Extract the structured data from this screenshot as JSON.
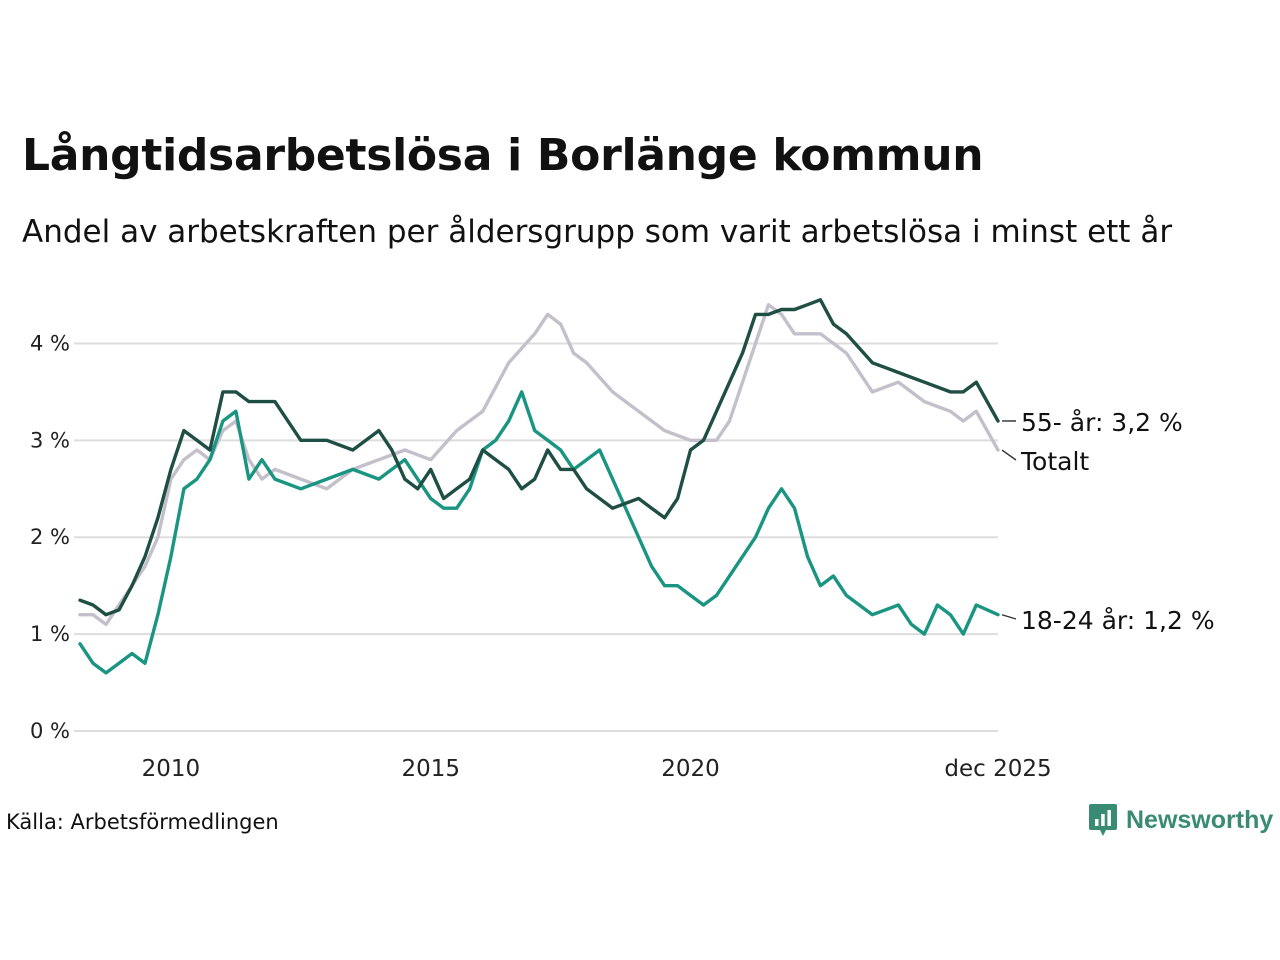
{
  "title": "Långtidsarbetslösa i Borlänge kommun",
  "subtitle": "Andel av arbetskraften per åldersgrupp som varit arbetslösa i minst ett år",
  "source": "Källa: Arbetsförmedlingen",
  "brand": "Newsworthy",
  "colors": {
    "age55": "#1f4e44",
    "total": "#c3c0cb",
    "age18_24": "#1a9582",
    "grid": "#dddddd",
    "brand": "#3a8b74"
  },
  "chart_data": {
    "type": "line",
    "title": "Långtidsarbetslösa i Borlänge kommun",
    "xlabel": "",
    "ylabel": "",
    "ylim": [
      0,
      4.5
    ],
    "xlim": [
      2008.25,
      2025.917
    ],
    "yticks": [
      {
        "value": 0,
        "label": "0 %"
      },
      {
        "value": 1,
        "label": "1 %"
      },
      {
        "value": 2,
        "label": "2 %"
      },
      {
        "value": 3,
        "label": "3 %"
      },
      {
        "value": 4,
        "label": "4 %"
      }
    ],
    "xticks": [
      {
        "value": 2010,
        "label": "2010"
      },
      {
        "value": 2015,
        "label": "2015"
      },
      {
        "value": 2020,
        "label": "2020"
      },
      {
        "value": 2025.917,
        "label": "dec 2025"
      }
    ],
    "series": [
      {
        "name": "Totalt",
        "key": "total",
        "label": "Totalt",
        "x": [
          2008.25,
          2008.5,
          2008.75,
          2009.0,
          2009.25,
          2009.5,
          2009.75,
          2010.0,
          2010.25,
          2010.5,
          2010.75,
          2011.0,
          2011.25,
          2011.5,
          2011.75,
          2012.0,
          2012.5,
          2013.0,
          2013.5,
          2014.0,
          2014.5,
          2015.0,
          2015.5,
          2016.0,
          2016.5,
          2017.0,
          2017.25,
          2017.5,
          2017.75,
          2018.0,
          2018.5,
          2019.0,
          2019.5,
          2020.0,
          2020.5,
          2020.75,
          2021.0,
          2021.25,
          2021.5,
          2021.75,
          2022.0,
          2022.5,
          2022.75,
          2023.0,
          2023.5,
          2024.0,
          2024.5,
          2025.0,
          2025.25,
          2025.5,
          2025.917
        ],
        "values": [
          1.2,
          1.2,
          1.1,
          1.3,
          1.5,
          1.7,
          2.0,
          2.6,
          2.8,
          2.9,
          2.8,
          3.1,
          3.2,
          2.8,
          2.6,
          2.7,
          2.6,
          2.5,
          2.7,
          2.8,
          2.9,
          2.8,
          3.1,
          3.3,
          3.8,
          4.1,
          4.3,
          4.2,
          3.9,
          3.8,
          3.5,
          3.3,
          3.1,
          3.0,
          3.0,
          3.2,
          3.6,
          4.0,
          4.4,
          4.3,
          4.1,
          4.1,
          4.0,
          3.9,
          3.5,
          3.6,
          3.4,
          3.3,
          3.2,
          3.3,
          2.9
        ]
      },
      {
        "name": "55- år",
        "key": "age55",
        "label": "55- år: 3,2 %",
        "x": [
          2008.25,
          2008.5,
          2008.75,
          2009.0,
          2009.25,
          2009.5,
          2009.75,
          2010.0,
          2010.25,
          2010.5,
          2010.75,
          2011.0,
          2011.25,
          2011.5,
          2011.75,
          2012.0,
          2012.5,
          2013.0,
          2013.5,
          2014.0,
          2014.25,
          2014.5,
          2014.75,
          2015.0,
          2015.25,
          2015.5,
          2015.75,
          2016.0,
          2016.25,
          2016.5,
          2016.75,
          2017.0,
          2017.25,
          2017.5,
          2017.75,
          2018.0,
          2018.5,
          2019.0,
          2019.25,
          2019.5,
          2019.75,
          2020.0,
          2020.25,
          2020.5,
          2020.75,
          2021.0,
          2021.25,
          2021.5,
          2021.75,
          2022.0,
          2022.25,
          2022.5,
          2022.75,
          2023.0,
          2023.5,
          2024.0,
          2024.5,
          2025.0,
          2025.25,
          2025.5,
          2025.917
        ],
        "values": [
          1.35,
          1.3,
          1.2,
          1.25,
          1.5,
          1.8,
          2.2,
          2.7,
          3.1,
          3.0,
          2.9,
          3.5,
          3.5,
          3.4,
          3.4,
          3.4,
          3.0,
          3.0,
          2.9,
          3.1,
          2.9,
          2.6,
          2.5,
          2.7,
          2.4,
          2.5,
          2.6,
          2.9,
          2.8,
          2.7,
          2.5,
          2.6,
          2.9,
          2.7,
          2.7,
          2.5,
          2.3,
          2.4,
          2.3,
          2.2,
          2.4,
          2.9,
          3.0,
          3.3,
          3.6,
          3.9,
          4.3,
          4.3,
          4.35,
          4.35,
          4.4,
          4.45,
          4.2,
          4.1,
          3.8,
          3.7,
          3.6,
          3.5,
          3.5,
          3.6,
          3.2
        ]
      },
      {
        "name": "18-24 år",
        "key": "age18_24",
        "label": "18-24 år: 1,2 %",
        "x": [
          2008.25,
          2008.5,
          2008.75,
          2009.0,
          2009.25,
          2009.5,
          2009.75,
          2010.0,
          2010.25,
          2010.5,
          2010.75,
          2011.0,
          2011.25,
          2011.5,
          2011.75,
          2012.0,
          2012.5,
          2013.0,
          2013.5,
          2014.0,
          2014.25,
          2014.5,
          2014.75,
          2015.0,
          2015.25,
          2015.5,
          2015.75,
          2016.0,
          2016.25,
          2016.5,
          2016.75,
          2017.0,
          2017.25,
          2017.5,
          2017.75,
          2018.0,
          2018.25,
          2018.5,
          2018.75,
          2019.0,
          2019.25,
          2019.5,
          2019.75,
          2020.0,
          2020.25,
          2020.5,
          2020.75,
          2021.0,
          2021.25,
          2021.5,
          2021.75,
          2022.0,
          2022.25,
          2022.5,
          2022.75,
          2023.0,
          2023.5,
          2024.0,
          2024.25,
          2024.5,
          2024.75,
          2025.0,
          2025.25,
          2025.5,
          2025.917
        ],
        "values": [
          0.9,
          0.7,
          0.6,
          0.7,
          0.8,
          0.7,
          1.2,
          1.8,
          2.5,
          2.6,
          2.8,
          3.2,
          3.3,
          2.6,
          2.8,
          2.6,
          2.5,
          2.6,
          2.7,
          2.6,
          2.7,
          2.8,
          2.6,
          2.4,
          2.3,
          2.3,
          2.5,
          2.9,
          3.0,
          3.2,
          3.5,
          3.1,
          3.0,
          2.9,
          2.7,
          2.8,
          2.9,
          2.6,
          2.3,
          2.0,
          1.7,
          1.5,
          1.5,
          1.4,
          1.3,
          1.4,
          1.6,
          1.8,
          2.0,
          2.3,
          2.5,
          2.3,
          1.8,
          1.5,
          1.6,
          1.4,
          1.2,
          1.3,
          1.1,
          1.0,
          1.3,
          1.2,
          1.0,
          1.3,
          1.2
        ]
      }
    ]
  }
}
